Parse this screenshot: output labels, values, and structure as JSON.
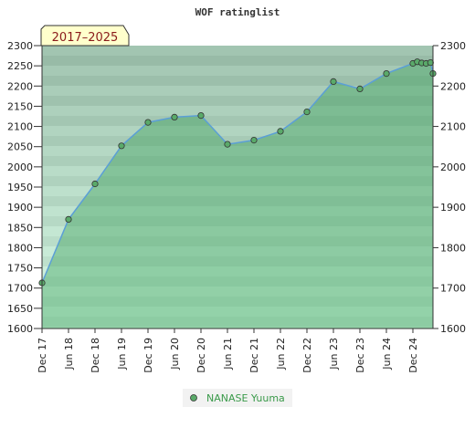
{
  "chart_data": {
    "type": "area",
    "title": "WOF ratinglist",
    "range_label": "2017–2025",
    "xlabel": "",
    "ylabel": "",
    "ylim": [
      1600,
      2300
    ],
    "yticks": [
      1600,
      1650,
      1700,
      1750,
      1800,
      1850,
      1900,
      1950,
      2000,
      2050,
      2100,
      2150,
      2200,
      2250,
      2300
    ],
    "yticks_right": [
      1600,
      1700,
      1800,
      1900,
      2000,
      2100,
      2200,
      2300
    ],
    "xticks": [
      "Dec 17",
      "Jun 18",
      "Dec 18",
      "Jun 19",
      "Dec 19",
      "Jun 20",
      "Dec 20",
      "Jun 21",
      "Dec 21",
      "Jun 22",
      "Dec 22",
      "Jun 23",
      "Dec 23",
      "Jun 24",
      "Dec 24"
    ],
    "x_start": "2017-12",
    "x_end": "2025-02",
    "grid": true,
    "legend_position": "bottom",
    "series": [
      {
        "name": "NANASE Yuuma",
        "color": "#5aaa6a",
        "points": [
          {
            "x": "2017-12",
            "y": 1713
          },
          {
            "x": "2018-06",
            "y": 1870
          },
          {
            "x": "2018-12",
            "y": 1958
          },
          {
            "x": "2019-06",
            "y": 2052
          },
          {
            "x": "2019-12",
            "y": 2110
          },
          {
            "x": "2020-06",
            "y": 2123
          },
          {
            "x": "2020-12",
            "y": 2127
          },
          {
            "x": "2021-06",
            "y": 2056
          },
          {
            "x": "2021-12",
            "y": 2066
          },
          {
            "x": "2022-06",
            "y": 2088
          },
          {
            "x": "2022-12",
            "y": 2136
          },
          {
            "x": "2023-06",
            "y": 2211
          },
          {
            "x": "2023-12",
            "y": 2193
          },
          {
            "x": "2024-06",
            "y": 2231
          },
          {
            "x": "2024-12",
            "y": 2256
          },
          {
            "x": "2025-01",
            "y": 2260
          },
          {
            "x": "2025-02",
            "y": 2257
          },
          {
            "x": "2025-03",
            "y": 2256
          },
          {
            "x": "2025-04",
            "y": 2258
          },
          {
            "x": "2025-05",
            "y": 2231
          }
        ]
      }
    ]
  }
}
